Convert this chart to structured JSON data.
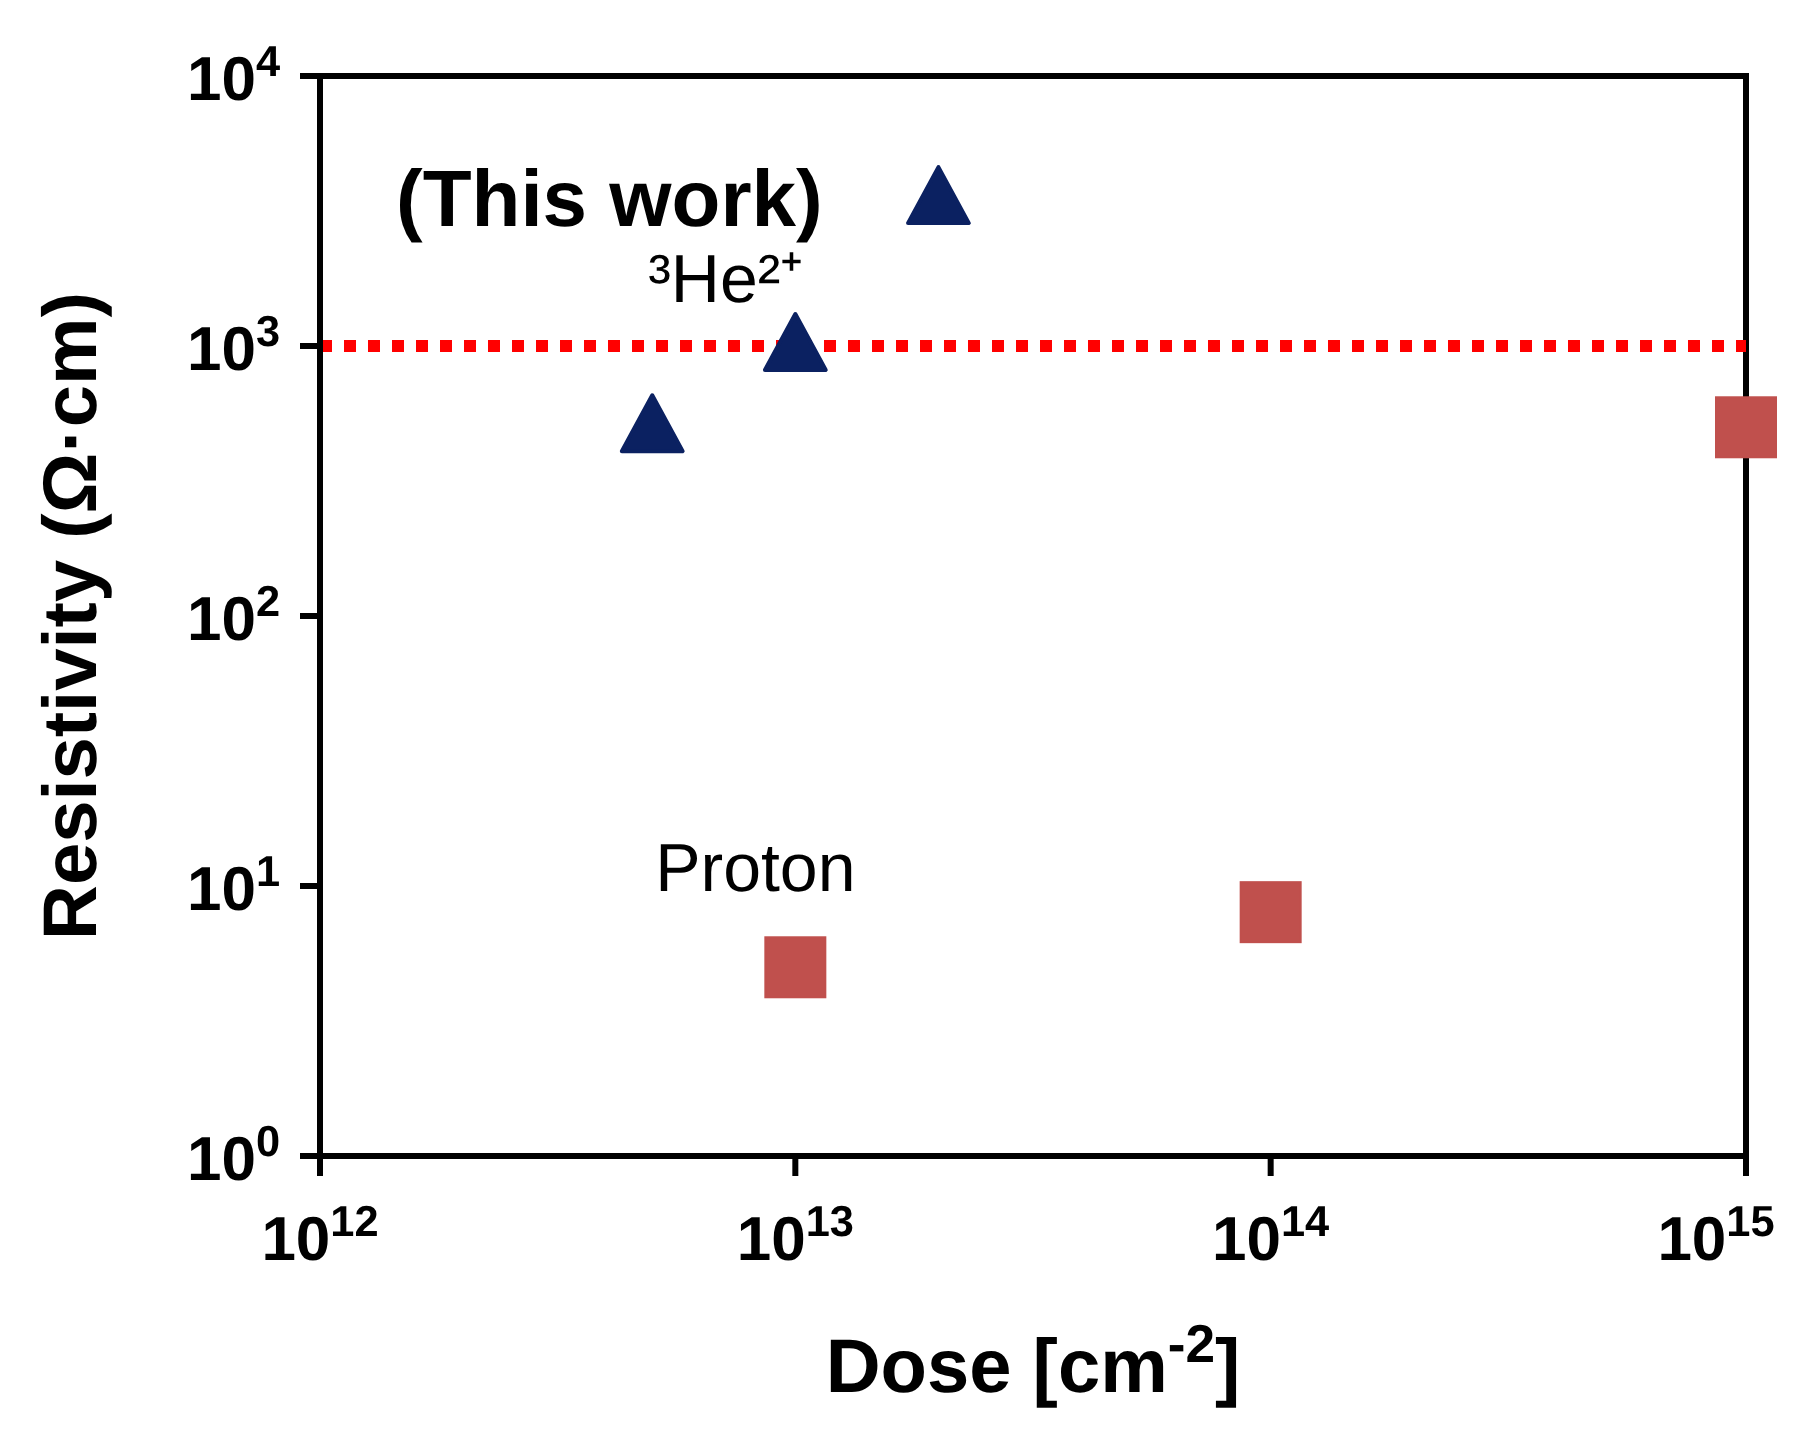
{
  "chart_data": {
    "type": "scatter",
    "xlabel": "Dose [cm$^{-2}$]",
    "ylabel": "Resistivity (Ω·cm)",
    "log": "xy",
    "legend": false,
    "xlim": [
      1000000000000.0,
      1000000000000000.0
    ],
    "xticks": [
      {
        "value": 1000000000000.0,
        "label": "10$^{12}$"
      },
      {
        "value": 10000000000000.0,
        "label": "10$^{13}$"
      },
      {
        "value": 100000000000000.0,
        "label": "10$^{14}$"
      },
      {
        "value": 1000000000000000.0,
        "label": "10$^{15}$"
      }
    ],
    "ylim": [
      1,
      10000
    ],
    "yticks": [
      {
        "value": 1,
        "label": "10$^{0}$"
      },
      {
        "value": 10,
        "label": "10$^{1}$"
      },
      {
        "value": 100,
        "label": "10$^{2}$"
      },
      {
        "value": 1000,
        "label": "10$^{3}$"
      },
      {
        "value": 10000,
        "label": "10$^{4}$"
      }
    ],
    "series": [
      {
        "name": "³He²⁺",
        "color": "#0b2161",
        "marker": "triangle",
        "x": [
          5000000000000.0,
          10000000000000.0,
          20000000000000.0
        ],
        "values": [
          500,
          1000,
          3500
        ]
      },
      {
        "name": "Proton",
        "color": "#c0504d",
        "marker": "square",
        "x": [
          10000000000000.0,
          100000000000000.0,
          1000000000000000.0
        ],
        "values": [
          5,
          8,
          500
        ]
      }
    ],
    "ref_lines": [
      {
        "axis": "y",
        "value": 1000,
        "color": "#ff0000",
        "line_style": "dotted"
      }
    ],
    "annotations": [
      "(This work)"
    ]
  }
}
